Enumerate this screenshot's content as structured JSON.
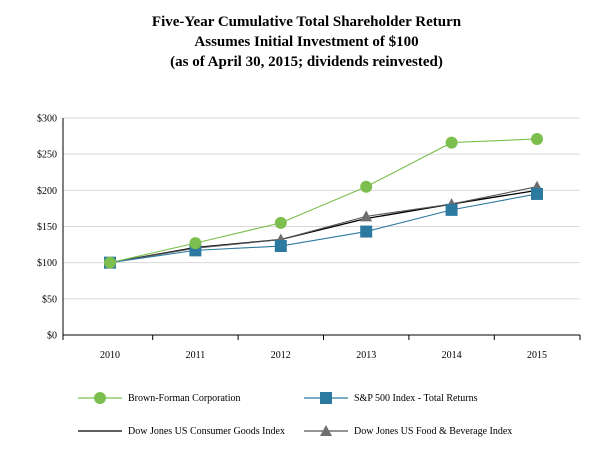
{
  "chart_data": {
    "type": "line",
    "title": "Five-Year Cumulative Total Shareholder Return",
    "subtitle": "Assumes Initial Investment of $100",
    "subtitle2": "(as of April 30, 2015; dividends reinvested)",
    "xlabel": "",
    "ylabel": "",
    "categories": [
      "2010",
      "2011",
      "2012",
      "2013",
      "2014",
      "2015"
    ],
    "ylim": [
      0,
      300
    ],
    "yticks": [
      0,
      50,
      100,
      150,
      200,
      250,
      300
    ],
    "ytick_labels": [
      "$0",
      "$50",
      "$100",
      "$150",
      "$200",
      "$250",
      "$300"
    ],
    "grid": true,
    "legend_position": "bottom",
    "series": [
      {
        "name": "Brown-Forman Corporation",
        "values": [
          100,
          127,
          155,
          205,
          266,
          271
        ],
        "color": "#7dbf4e",
        "marker": "circle"
      },
      {
        "name": "S&P 500 Index - Total Returns",
        "values": [
          100,
          117,
          123,
          143,
          173,
          195
        ],
        "color": "#2c7aa0",
        "marker": "square"
      },
      {
        "name": "Dow Jones US Consumer Goods Index",
        "values": [
          100,
          121,
          132,
          161,
          181,
          200
        ],
        "color": "#000000",
        "marker": "none"
      },
      {
        "name": "Dow Jones US Food & Beverage Index",
        "values": [
          100,
          120,
          132,
          164,
          181,
          205
        ],
        "color": "#6f6f6f",
        "marker": "triangle"
      }
    ]
  }
}
